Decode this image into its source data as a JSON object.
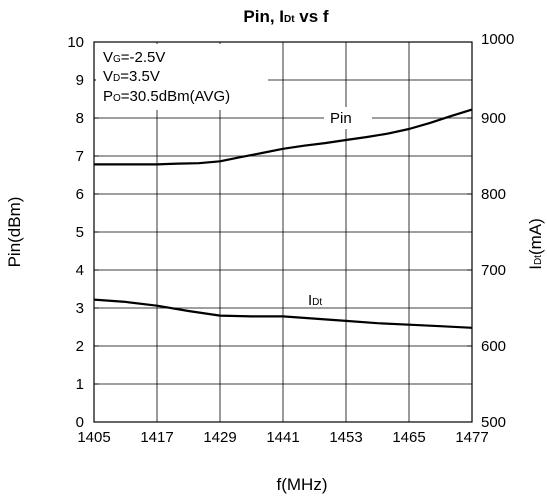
{
  "chart_data": {
    "type": "line",
    "title": "Pin, IDt vs f",
    "title_parts": {
      "pre": "Pin, I",
      "sub": "Dt",
      "post": " vs f"
    },
    "xlabel": "f(MHz)",
    "ylabel_left": "Pin(dBm)",
    "ylabel_right": {
      "pre": "I",
      "sub": "Dt",
      "post": "(mA)"
    },
    "xlim": [
      1405,
      1477
    ],
    "ylim_left": [
      0,
      10
    ],
    "ylim_right": [
      500,
      1000
    ],
    "x_ticks": [
      "1405",
      "1417",
      "1429",
      "1441",
      "1453",
      "1465",
      "1477"
    ],
    "y_ticks_left": [
      "0",
      "1",
      "2",
      "3",
      "4",
      "5",
      "6",
      "7",
      "8",
      "9",
      "10"
    ],
    "y_ticks_right": [
      "500",
      "600",
      "700",
      "800",
      "900",
      "1000"
    ],
    "grid": true,
    "annotations": [
      {
        "pre": "V",
        "sub": "G",
        "post": "=-2.5V"
      },
      {
        "pre": "V",
        "sub": "D",
        "post": "=3.5V"
      },
      {
        "pre": "P",
        "sub": "O",
        "post": "=30.5dBm(AVG)"
      }
    ],
    "series": [
      {
        "name": "Pin",
        "label_parts": {
          "pre": "Pin",
          "sub": "",
          "post": ""
        },
        "axis": "left",
        "x": [
          1405,
          1409,
          1417,
          1421,
          1425,
          1429,
          1433,
          1437,
          1441,
          1445,
          1449,
          1453,
          1457,
          1461,
          1465,
          1469,
          1473,
          1477
        ],
        "y": [
          6.78,
          6.78,
          6.78,
          6.8,
          6.81,
          6.86,
          6.97,
          7.08,
          7.19,
          7.27,
          7.34,
          7.42,
          7.5,
          7.59,
          7.71,
          7.87,
          8.05,
          8.22
        ]
      },
      {
        "name": "IDt",
        "label_parts": {
          "pre": "I",
          "sub": "Dt",
          "post": ""
        },
        "axis": "right",
        "x": [
          1405,
          1411,
          1417,
          1423,
          1429,
          1435,
          1441,
          1447,
          1453,
          1459,
          1465,
          1471,
          1477
        ],
        "y": [
          661,
          658,
          653,
          646,
          640,
          639,
          639,
          636,
          633,
          630,
          628,
          626,
          624
        ]
      }
    ]
  }
}
